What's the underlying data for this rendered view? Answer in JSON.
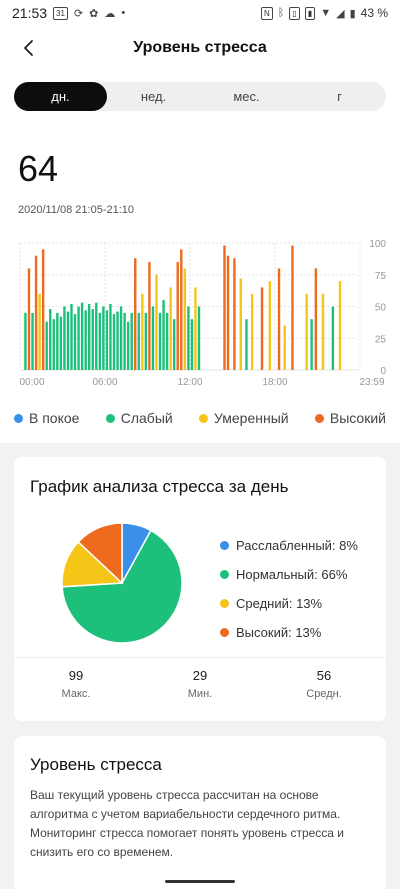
{
  "status_bar": {
    "time": "21:53",
    "battery": "43 %",
    "left_icons": [
      "calendar-icon",
      "sync-icon",
      "fan-icon",
      "cloud-icon",
      "dot-icon"
    ],
    "right_icons": [
      "nfc-icon",
      "bluetooth-icon",
      "vibrate-icon",
      "sim-icon",
      "wifi-icon",
      "signal-icon",
      "battery-icon"
    ]
  },
  "header": {
    "title": "Уровень стресса"
  },
  "tabs": [
    {
      "label": "дн.",
      "active": true
    },
    {
      "label": "нед.",
      "active": false
    },
    {
      "label": "мес.",
      "active": false
    },
    {
      "label": "г",
      "active": false
    }
  ],
  "current": {
    "value": "64",
    "date_range": "2020/11/08 21:05-21:10"
  },
  "chart_data": {
    "type": "bar",
    "x_ticks": [
      "00:00",
      "06:00",
      "12:00",
      "18:00",
      "23:59"
    ],
    "y_ticks": [
      "0",
      "25",
      "50",
      "75",
      "100"
    ],
    "ylim": [
      0,
      100
    ],
    "grid": true,
    "colors": {
      "calm": "#3a8fe8",
      "weak": "#1cc07a",
      "moderate": "#f5c518",
      "high": "#ee6a1e"
    },
    "bars": [
      [
        0.3,
        45,
        "weak"
      ],
      [
        0.55,
        80,
        "high"
      ],
      [
        0.8,
        45,
        "weak"
      ],
      [
        1.05,
        90,
        "high"
      ],
      [
        1.3,
        60,
        "moderate"
      ],
      [
        1.55,
        95,
        "high"
      ],
      [
        1.8,
        38,
        "weak"
      ],
      [
        2.05,
        48,
        "weak"
      ],
      [
        2.3,
        40,
        "weak"
      ],
      [
        2.55,
        45,
        "weak"
      ],
      [
        2.8,
        42,
        "weak"
      ],
      [
        3.05,
        50,
        "weak"
      ],
      [
        3.3,
        46,
        "weak"
      ],
      [
        3.55,
        52,
        "weak"
      ],
      [
        3.8,
        44,
        "weak"
      ],
      [
        4.05,
        50,
        "weak"
      ],
      [
        4.3,
        53,
        "weak"
      ],
      [
        4.55,
        47,
        "weak"
      ],
      [
        4.8,
        52,
        "weak"
      ],
      [
        5.05,
        48,
        "weak"
      ],
      [
        5.3,
        53,
        "weak"
      ],
      [
        5.55,
        45,
        "weak"
      ],
      [
        5.8,
        50,
        "weak"
      ],
      [
        6.05,
        47,
        "weak"
      ],
      [
        6.3,
        52,
        "weak"
      ],
      [
        6.55,
        44,
        "weak"
      ],
      [
        6.8,
        46,
        "weak"
      ],
      [
        7.05,
        50,
        "weak"
      ],
      [
        7.3,
        45,
        "weak"
      ],
      [
        7.55,
        38,
        "weak"
      ],
      [
        7.8,
        45,
        "weak"
      ],
      [
        8.05,
        88,
        "high"
      ],
      [
        8.3,
        45,
        "weak"
      ],
      [
        8.55,
        60,
        "moderate"
      ],
      [
        8.8,
        45,
        "weak"
      ],
      [
        9.05,
        85,
        "high"
      ],
      [
        9.3,
        50,
        "weak"
      ],
      [
        9.55,
        75,
        "moderate"
      ],
      [
        9.8,
        45,
        "weak"
      ],
      [
        10.05,
        55,
        "weak"
      ],
      [
        10.3,
        45,
        "weak"
      ],
      [
        10.55,
        65,
        "moderate"
      ],
      [
        10.8,
        40,
        "weak"
      ],
      [
        11.05,
        85,
        "high"
      ],
      [
        11.3,
        95,
        "high"
      ],
      [
        11.55,
        80,
        "moderate"
      ],
      [
        11.8,
        50,
        "weak"
      ],
      [
        12.05,
        40,
        "weak"
      ],
      [
        12.3,
        65,
        "moderate"
      ],
      [
        12.55,
        50,
        "weak"
      ],
      [
        14.35,
        98,
        "high"
      ],
      [
        14.6,
        90,
        "high"
      ],
      [
        15.05,
        88,
        "high"
      ],
      [
        15.5,
        72,
        "moderate"
      ],
      [
        15.9,
        40,
        "weak"
      ],
      [
        16.3,
        60,
        "moderate"
      ],
      [
        17.0,
        65,
        "high"
      ],
      [
        17.55,
        70,
        "moderate"
      ],
      [
        18.2,
        80,
        "high"
      ],
      [
        18.6,
        35,
        "moderate"
      ],
      [
        19.15,
        98,
        "high"
      ],
      [
        20.15,
        60,
        "moderate"
      ],
      [
        20.5,
        40,
        "weak"
      ],
      [
        20.8,
        80,
        "high"
      ],
      [
        21.3,
        60,
        "moderate"
      ],
      [
        22.0,
        50,
        "weak"
      ],
      [
        22.5,
        70,
        "moderate"
      ]
    ]
  },
  "legend": [
    {
      "label": "В покое",
      "color": "#3a8fe8"
    },
    {
      "label": "Слабый",
      "color": "#1cc07a"
    },
    {
      "label": "Умеренный",
      "color": "#f5c518"
    },
    {
      "label": "Высокий",
      "color": "#ee6a1e"
    }
  ],
  "pie_card": {
    "title": "График анализа стресса за день",
    "chart_data": {
      "type": "pie",
      "slices": [
        {
          "label": "Расслабленный: 8%",
          "value": 8,
          "color": "#3a8fe8"
        },
        {
          "label": "Нормальный: 66%",
          "value": 66,
          "color": "#1cc07a"
        },
        {
          "label": "Средний: 13%",
          "value": 13,
          "color": "#f5c518"
        },
        {
          "label": "Высокий: 13%",
          "value": 13,
          "color": "#ee6a1e"
        }
      ]
    },
    "stats": [
      {
        "value": "99",
        "label": "Макс."
      },
      {
        "value": "29",
        "label": "Мин."
      },
      {
        "value": "56",
        "label": "Средн."
      }
    ]
  },
  "info_card": {
    "title": "Уровень стресса",
    "text": "Ваш текущий уровень стресса рассчитан на основе алгоритма с учетом вариабельности сердечного ритма. Мониторинг стресса помогает понять уровень стресса и снизить его со временем."
  }
}
